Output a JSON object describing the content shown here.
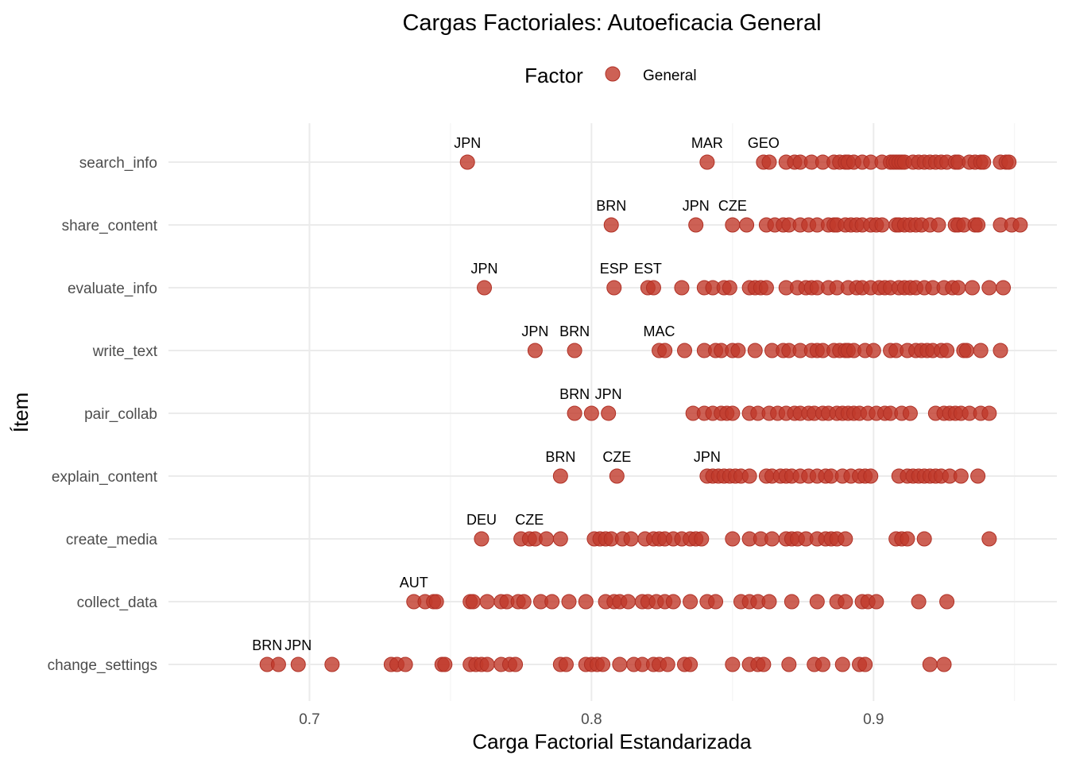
{
  "chart_data": {
    "type": "scatter",
    "title": "Cargas Factoriales: Autoeficacia General",
    "xlabel": "Carga Factorial Estandarizada",
    "ylabel": "Ítem",
    "xlim": [
      0.65,
      0.965
    ],
    "x_ticks": [
      "0.7",
      "0.8",
      "0.9"
    ],
    "grid": true,
    "legend": {
      "title": "Factor",
      "position": "top",
      "entries": [
        "General"
      ]
    },
    "colors": {
      "General": "#c0392b"
    },
    "categories": [
      "search_info",
      "share_content",
      "evaluate_info",
      "write_text",
      "pair_collab",
      "explain_content",
      "create_media",
      "collect_data",
      "change_settings"
    ],
    "series": [
      {
        "name": "General",
        "points": [
          {
            "item": "search_info",
            "values": [
              0.756,
              0.841,
              0.861,
              0.863,
              0.869,
              0.872,
              0.874,
              0.878,
              0.882,
              0.886,
              0.888,
              0.89,
              0.891,
              0.893,
              0.896,
              0.899,
              0.903,
              0.906,
              0.907,
              0.908,
              0.909,
              0.91,
              0.911,
              0.914,
              0.916,
              0.918,
              0.92,
              0.922,
              0.924,
              0.926,
              0.929,
              0.93,
              0.934,
              0.936,
              0.938,
              0.939,
              0.945,
              0.947,
              0.948
            ]
          },
          {
            "item": "share_content",
            "values": [
              0.807,
              0.837,
              0.85,
              0.855,
              0.862,
              0.865,
              0.868,
              0.87,
              0.874,
              0.877,
              0.88,
              0.884,
              0.886,
              0.887,
              0.89,
              0.892,
              0.894,
              0.896,
              0.899,
              0.901,
              0.903,
              0.908,
              0.909,
              0.911,
              0.913,
              0.915,
              0.917,
              0.92,
              0.923,
              0.929,
              0.93,
              0.932,
              0.936,
              0.937,
              0.945,
              0.949,
              0.952
            ]
          },
          {
            "item": "evaluate_info",
            "values": [
              0.762,
              0.808,
              0.82,
              0.822,
              0.832,
              0.84,
              0.843,
              0.847,
              0.849,
              0.856,
              0.858,
              0.86,
              0.862,
              0.869,
              0.873,
              0.876,
              0.878,
              0.88,
              0.884,
              0.887,
              0.891,
              0.894,
              0.896,
              0.899,
              0.902,
              0.904,
              0.906,
              0.909,
              0.911,
              0.913,
              0.915,
              0.918,
              0.921,
              0.925,
              0.928,
              0.93,
              0.935,
              0.941,
              0.946
            ]
          },
          {
            "item": "write_text",
            "values": [
              0.78,
              0.794,
              0.824,
              0.826,
              0.833,
              0.84,
              0.844,
              0.846,
              0.85,
              0.852,
              0.858,
              0.864,
              0.868,
              0.87,
              0.874,
              0.878,
              0.88,
              0.882,
              0.886,
              0.888,
              0.89,
              0.891,
              0.893,
              0.897,
              0.9,
              0.906,
              0.908,
              0.912,
              0.915,
              0.917,
              0.919,
              0.921,
              0.924,
              0.926,
              0.932,
              0.933,
              0.938,
              0.945
            ]
          },
          {
            "item": "pair_collab",
            "values": [
              0.794,
              0.8,
              0.806,
              0.836,
              0.84,
              0.843,
              0.846,
              0.848,
              0.85,
              0.856,
              0.859,
              0.863,
              0.866,
              0.869,
              0.872,
              0.874,
              0.877,
              0.879,
              0.882,
              0.884,
              0.887,
              0.889,
              0.891,
              0.893,
              0.895,
              0.898,
              0.901,
              0.904,
              0.906,
              0.91,
              0.913,
              0.922,
              0.925,
              0.927,
              0.929,
              0.931,
              0.934,
              0.938,
              0.941
            ]
          },
          {
            "item": "explain_content",
            "values": [
              0.789,
              0.809,
              0.841,
              0.843,
              0.845,
              0.847,
              0.849,
              0.851,
              0.853,
              0.856,
              0.862,
              0.864,
              0.867,
              0.869,
              0.871,
              0.874,
              0.877,
              0.88,
              0.883,
              0.885,
              0.889,
              0.892,
              0.895,
              0.897,
              0.899,
              0.909,
              0.912,
              0.914,
              0.916,
              0.918,
              0.92,
              0.922,
              0.924,
              0.927,
              0.931,
              0.937
            ]
          },
          {
            "item": "create_media",
            "values": [
              0.761,
              0.775,
              0.778,
              0.78,
              0.784,
              0.789,
              0.801,
              0.803,
              0.805,
              0.807,
              0.811,
              0.814,
              0.819,
              0.822,
              0.824,
              0.826,
              0.829,
              0.832,
              0.835,
              0.837,
              0.839,
              0.85,
              0.856,
              0.86,
              0.864,
              0.869,
              0.871,
              0.873,
              0.876,
              0.88,
              0.883,
              0.885,
              0.887,
              0.89,
              0.908,
              0.91,
              0.912,
              0.918,
              0.941
            ]
          },
          {
            "item": "collect_data",
            "values": [
              0.737,
              0.741,
              0.744,
              0.745,
              0.757,
              0.758,
              0.763,
              0.768,
              0.77,
              0.774,
              0.776,
              0.782,
              0.786,
              0.792,
              0.798,
              0.805,
              0.808,
              0.81,
              0.813,
              0.818,
              0.82,
              0.823,
              0.826,
              0.829,
              0.835,
              0.841,
              0.844,
              0.853,
              0.856,
              0.859,
              0.863,
              0.871,
              0.88,
              0.887,
              0.89,
              0.896,
              0.898,
              0.901,
              0.916,
              0.926
            ]
          },
          {
            "item": "change_settings",
            "values": [
              0.685,
              0.689,
              0.696,
              0.708,
              0.729,
              0.731,
              0.734,
              0.747,
              0.748,
              0.757,
              0.759,
              0.761,
              0.763,
              0.768,
              0.771,
              0.773,
              0.789,
              0.791,
              0.798,
              0.8,
              0.802,
              0.804,
              0.81,
              0.815,
              0.818,
              0.822,
              0.824,
              0.827,
              0.833,
              0.835,
              0.85,
              0.856,
              0.859,
              0.861,
              0.87,
              0.879,
              0.882,
              0.889,
              0.895,
              0.897,
              0.92,
              0.925
            ]
          }
        ]
      }
    ],
    "annotations": [
      {
        "item": "search_info",
        "x": 0.756,
        "text": "JPN"
      },
      {
        "item": "search_info",
        "x": 0.841,
        "text": "MAR"
      },
      {
        "item": "search_info",
        "x": 0.861,
        "text": "GEO"
      },
      {
        "item": "share_content",
        "x": 0.807,
        "text": "BRN"
      },
      {
        "item": "share_content",
        "x": 0.837,
        "text": "JPN"
      },
      {
        "item": "share_content",
        "x": 0.85,
        "text": "CZE"
      },
      {
        "item": "evaluate_info",
        "x": 0.762,
        "text": "JPN"
      },
      {
        "item": "evaluate_info",
        "x": 0.808,
        "text": "ESP"
      },
      {
        "item": "evaluate_info",
        "x": 0.82,
        "text": "EST"
      },
      {
        "item": "write_text",
        "x": 0.78,
        "text": "JPN"
      },
      {
        "item": "write_text",
        "x": 0.794,
        "text": "BRN"
      },
      {
        "item": "write_text",
        "x": 0.824,
        "text": "MAC"
      },
      {
        "item": "pair_collab",
        "x": 0.794,
        "text": "BRN"
      },
      {
        "item": "pair_collab",
        "x": 0.806,
        "text": "JPN"
      },
      {
        "item": "explain_content",
        "x": 0.789,
        "text": "BRN"
      },
      {
        "item": "explain_content",
        "x": 0.809,
        "text": "CZE"
      },
      {
        "item": "explain_content",
        "x": 0.841,
        "text": "JPN"
      },
      {
        "item": "create_media",
        "x": 0.761,
        "text": "DEU"
      },
      {
        "item": "create_media",
        "x": 0.778,
        "text": "CZE"
      },
      {
        "item": "collect_data",
        "x": 0.737,
        "text": "AUT"
      },
      {
        "item": "change_settings",
        "x": 0.685,
        "text": "BRN"
      },
      {
        "item": "change_settings",
        "x": 0.696,
        "text": "JPN"
      }
    ]
  }
}
